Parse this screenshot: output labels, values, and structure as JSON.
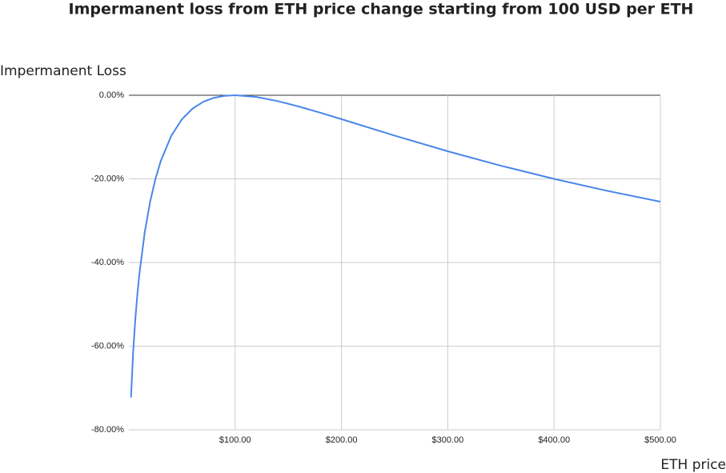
{
  "chart_data": {
    "type": "line",
    "title": "Impermanent loss from ETH price change starting from 100 USD per ETH",
    "y_label": "Impermanent Loss",
    "x_label": "ETH price",
    "x": [
      2,
      4,
      6,
      8,
      10,
      15,
      20,
      25,
      30,
      40,
      50,
      60,
      70,
      80,
      90,
      100,
      120,
      140,
      160,
      180,
      200,
      250,
      300,
      350,
      400,
      450,
      500
    ],
    "series": [
      {
        "name": "Impermanent Loss",
        "color": "#4a86e8",
        "values": [
          -72.27,
          -61.54,
          -53.78,
          -47.62,
          -42.5,
          -32.64,
          -25.46,
          -20.0,
          -15.73,
          -9.65,
          -5.72,
          -3.18,
          -1.57,
          -0.62,
          -0.14,
          0,
          -0.41,
          -1.4,
          -2.7,
          -4.17,
          -5.72,
          -9.65,
          -13.4,
          -16.85,
          -20.0,
          -22.86,
          -25.46
        ]
      }
    ],
    "xlim": [
      0,
      500
    ],
    "xticks": [
      {
        "value": 100,
        "label": "$100.00"
      },
      {
        "value": 200,
        "label": "$200.00"
      },
      {
        "value": 300,
        "label": "$300.00"
      },
      {
        "value": 400,
        "label": "$400.00"
      },
      {
        "value": 500,
        "label": "$500.00"
      }
    ],
    "ylim": [
      -80,
      0
    ],
    "yticks": [
      {
        "value": 0,
        "label": "0.00%"
      },
      {
        "value": -20,
        "label": "-20.00%"
      },
      {
        "value": -40,
        "label": "-40.00%"
      },
      {
        "value": -60,
        "label": "-60.00%"
      },
      {
        "value": -80,
        "label": "-80.00%"
      }
    ],
    "grid": true
  }
}
